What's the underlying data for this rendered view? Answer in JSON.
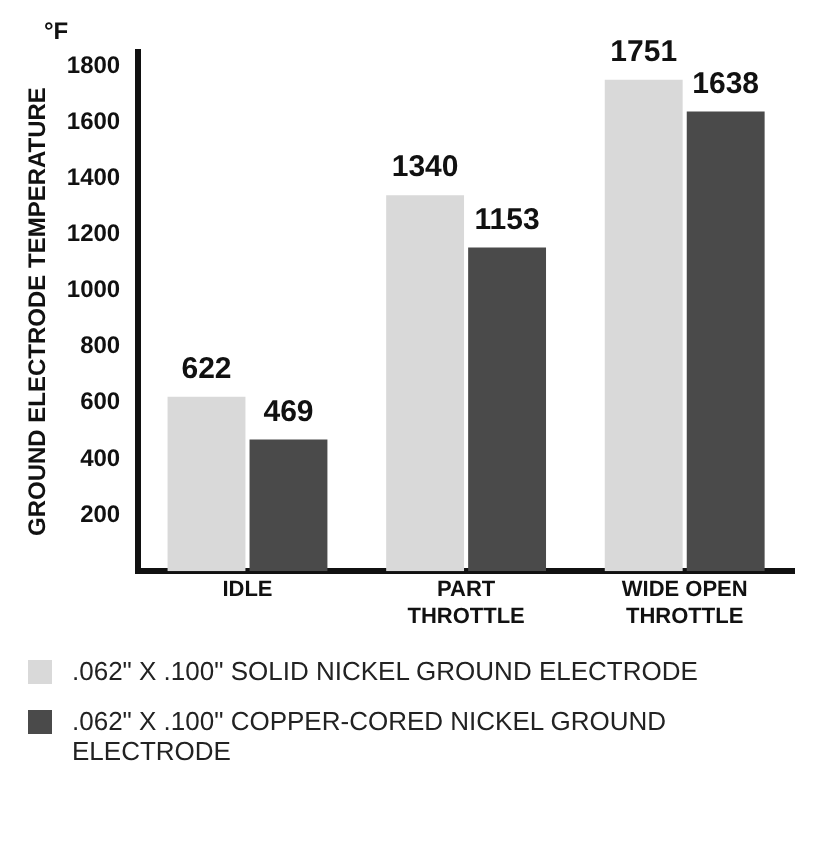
{
  "chart_data": {
    "type": "bar",
    "ylabel": "GROUND ELECTRODE TEMPERATURE",
    "annotations": [
      "°F"
    ],
    "categories": [
      "IDLE",
      "PART THROTTLE",
      "WIDE OPEN THROTTLE"
    ],
    "series": [
      {
        "name": ".062\" X .100\" SOLID NICKEL GROUND ELECTRODE",
        "color": "#d9d9d9",
        "values": [
          622,
          1340,
          1751
        ]
      },
      {
        "name": ".062\" X .100\" COPPER-CORED NICKEL GROUND ELECTRODE",
        "color": "#4a4a4a",
        "values": [
          469,
          1153,
          1638
        ]
      }
    ],
    "ylim": [
      0,
      1850
    ],
    "yticks": [
      200,
      400,
      600,
      800,
      1000,
      1200,
      1400,
      1600,
      1800
    ],
    "data_labels": true,
    "grid": false,
    "legend": "bottom"
  }
}
